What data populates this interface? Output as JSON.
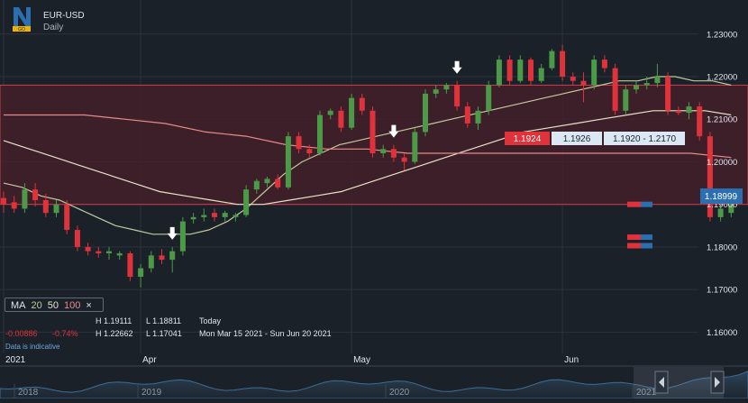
{
  "header": {
    "symbol": "EUR-USD",
    "period": "Daily",
    "logo_text": "GO"
  },
  "colors": {
    "up": "#4c9a47",
    "down": "#e0323a",
    "ma20": "#c0c99a",
    "ma50": "#e7e3c8",
    "ma100": "#e88a8a",
    "band": "#d23c4b",
    "accent": "#2c6fb0"
  },
  "ma_legend": {
    "label": "MA",
    "p20": "20",
    "p50": "50",
    "p100": "100",
    "close": "×"
  },
  "stats": {
    "change": "-0.00886",
    "change_pct": "-0.74%",
    "today_high": "H 1.19111",
    "today_low": "L 1.18811",
    "today_label": "Today",
    "range_high": "H 1.22662",
    "range_low": "L 1.17041",
    "range_label": "Mon Mar 15 2021 - Sun Jun 20 2021",
    "note": "Data is indicative"
  },
  "price_boxes": {
    "sell": "1.1924",
    "buy": "1.1926",
    "range": "1.1920 - 1.2170",
    "current": "1.18999"
  },
  "navigator_labels": [
    "2018",
    "2019",
    "2020",
    "2021"
  ],
  "chart_data": {
    "type": "candlestick",
    "y_axis": {
      "ylim": [
        1.155,
        1.238
      ],
      "ticks": [
        1.16,
        1.17,
        1.18,
        1.19,
        1.2,
        1.21,
        1.22,
        1.23
      ],
      "tick_labels": [
        "1.16000",
        "1.17000",
        "1.18000",
        "1.19000",
        "1.20000",
        "1.21000",
        "1.22000",
        "1.23000"
      ]
    },
    "x_axis": {
      "labels": [
        "2021",
        "Apr",
        "May",
        "Jun"
      ],
      "label_index": [
        0,
        13,
        33,
        53
      ]
    },
    "band": [
      1.19,
      1.218
    ],
    "current_price": 1.18999,
    "candles": [
      [
        1.1915,
        1.193,
        1.188,
        1.19
      ],
      [
        1.1905,
        1.192,
        1.188,
        1.189
      ],
      [
        1.189,
        1.195,
        1.188,
        1.1935
      ],
      [
        1.1935,
        1.195,
        1.1895,
        1.191
      ],
      [
        1.191,
        1.1925,
        1.187,
        1.188
      ],
      [
        1.188,
        1.191,
        1.187,
        1.19
      ],
      [
        1.19,
        1.191,
        1.183,
        1.184
      ],
      [
        1.184,
        1.185,
        1.179,
        1.18
      ],
      [
        1.18,
        1.181,
        1.178,
        1.179
      ],
      [
        1.179,
        1.18,
        1.1775,
        1.1785
      ],
      [
        1.1785,
        1.18,
        1.177,
        1.179
      ],
      [
        1.178,
        1.179,
        1.177,
        1.1785
      ],
      [
        1.1785,
        1.179,
        1.172,
        1.173
      ],
      [
        1.173,
        1.176,
        1.1705,
        1.175
      ],
      [
        1.175,
        1.179,
        1.174,
        1.178
      ],
      [
        1.178,
        1.1795,
        1.176,
        1.177
      ],
      [
        1.177,
        1.18,
        1.174,
        1.179
      ],
      [
        1.179,
        1.187,
        1.178,
        1.186
      ],
      [
        1.1865,
        1.188,
        1.1855,
        1.187
      ],
      [
        1.187,
        1.189,
        1.186,
        1.1875
      ],
      [
        1.188,
        1.189,
        1.186,
        1.187
      ],
      [
        1.187,
        1.1885,
        1.186,
        1.188
      ],
      [
        1.187,
        1.188,
        1.186,
        1.1875
      ],
      [
        1.1875,
        1.1945,
        1.187,
        1.1935
      ],
      [
        1.1935,
        1.196,
        1.1925,
        1.1955
      ],
      [
        1.195,
        1.1965,
        1.194,
        1.196
      ],
      [
        1.196,
        1.197,
        1.1935,
        1.194
      ],
      [
        1.194,
        1.207,
        1.1935,
        1.206
      ],
      [
        1.206,
        1.207,
        1.202,
        1.203
      ],
      [
        1.203,
        1.204,
        1.201,
        1.202
      ],
      [
        1.202,
        1.212,
        1.2015,
        1.211
      ],
      [
        1.211,
        1.2125,
        1.21,
        1.212
      ],
      [
        1.212,
        1.213,
        1.207,
        1.208
      ],
      [
        1.208,
        1.216,
        1.2075,
        1.215
      ],
      [
        1.215,
        1.216,
        1.211,
        1.212
      ],
      [
        1.212,
        1.213,
        1.201,
        1.202
      ],
      [
        1.202,
        1.204,
        1.201,
        1.203
      ],
      [
        1.203,
        1.204,
        1.2,
        1.201
      ],
      [
        1.201,
        1.202,
        1.198,
        1.2
      ],
      [
        1.2,
        1.208,
        1.1995,
        1.207
      ],
      [
        1.207,
        1.217,
        1.206,
        1.216
      ],
      [
        1.216,
        1.218,
        1.215,
        1.217
      ],
      [
        1.217,
        1.2185,
        1.216,
        1.218
      ],
      [
        1.218,
        1.219,
        1.212,
        1.213
      ],
      [
        1.213,
        1.214,
        1.208,
        1.209
      ],
      [
        1.209,
        1.213,
        1.2075,
        1.212
      ],
      [
        1.212,
        1.219,
        1.211,
        1.218
      ],
      [
        1.218,
        1.225,
        1.2175,
        1.224
      ],
      [
        1.224,
        1.225,
        1.218,
        1.219
      ],
      [
        1.219,
        1.225,
        1.2185,
        1.224
      ],
      [
        1.224,
        1.2245,
        1.218,
        1.219
      ],
      [
        1.219,
        1.223,
        1.2185,
        1.222
      ],
      [
        1.222,
        1.2265,
        1.2215,
        1.226
      ],
      [
        1.226,
        1.2275,
        1.219,
        1.22
      ],
      [
        1.22,
        1.221,
        1.218,
        1.219
      ],
      [
        1.219,
        1.221,
        1.214,
        1.218
      ],
      [
        1.218,
        1.225,
        1.217,
        1.224
      ],
      [
        1.224,
        1.225,
        1.221,
        1.222
      ],
      [
        1.222,
        1.223,
        1.211,
        1.212
      ],
      [
        1.212,
        1.218,
        1.211,
        1.217
      ],
      [
        1.217,
        1.219,
        1.216,
        1.218
      ],
      [
        1.218,
        1.22,
        1.217,
        1.2185
      ],
      [
        1.2185,
        1.223,
        1.2175,
        1.22
      ],
      [
        1.22,
        1.221,
        1.211,
        1.212
      ],
      [
        1.212,
        1.213,
        1.211,
        1.2115
      ],
      [
        1.2115,
        1.214,
        1.21,
        1.213
      ],
      [
        1.213,
        1.214,
        1.205,
        1.206
      ],
      [
        1.206,
        1.207,
        1.186,
        1.187
      ],
      [
        1.187,
        1.19,
        1.186,
        1.189
      ],
      [
        1.188,
        1.191,
        1.187,
        1.19
      ]
    ],
    "series": [
      {
        "name": "20",
        "color": "#c0c99a",
        "values": [
          1.195,
          1.194,
          1.192,
          1.191,
          1.189,
          1.187,
          1.185,
          1.184,
          1.183,
          1.183,
          1.183,
          1.184,
          1.186,
          1.189,
          1.193,
          1.197,
          1.2,
          1.202,
          1.204,
          1.205,
          1.206,
          1.207,
          1.208,
          1.209,
          1.21,
          1.211,
          1.212,
          1.213,
          1.214,
          1.215,
          1.216,
          1.217,
          1.218,
          1.219,
          1.219,
          1.22,
          1.22,
          1.219,
          1.219,
          1.218
        ]
      },
      {
        "name": "50",
        "color": "#e7e3c8",
        "values": [
          1.205,
          1.203,
          1.201,
          1.199,
          1.197,
          1.195,
          1.193,
          1.192,
          1.191,
          1.19,
          1.19,
          1.191,
          1.192,
          1.193,
          1.195,
          1.197,
          1.199,
          1.201,
          1.203,
          1.205,
          1.207,
          1.208,
          1.209,
          1.21,
          1.211,
          1.212,
          1.212,
          1.212,
          1.211
        ]
      },
      {
        "name": "100",
        "color": "#e88a8a",
        "values": [
          1.211,
          1.211,
          1.211,
          1.21,
          1.209,
          1.207,
          1.206,
          1.204,
          1.203,
          1.203,
          1.202,
          1.202,
          1.202,
          1.202,
          1.202,
          1.202,
          1.202,
          1.202,
          1.201
        ]
      }
    ]
  }
}
